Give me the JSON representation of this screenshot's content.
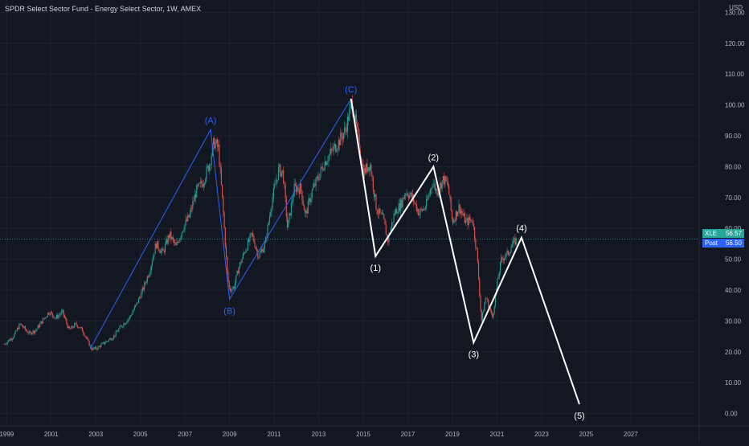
{
  "header": {
    "title": "SPDR Select Sector Fund - Energy Select Sector, 1W, AMEX",
    "currency": "USD"
  },
  "price_tags": {
    "last": {
      "label": "XLE",
      "value": "56.57"
    },
    "post": {
      "label": "Post",
      "value": "56.50"
    }
  },
  "colors": {
    "background": "#131722",
    "up": "#26a69a",
    "down": "#ef5350",
    "wave_abc": "#2962ff",
    "wave_impulse": "#ffffff",
    "grid": "#1e222d"
  },
  "chart_data": {
    "type": "line",
    "title": "SPDR Select Sector Fund - Energy Select Sector, 1W, AMEX",
    "xlabel": "",
    "ylabel": "",
    "xlim": [
      1998.7,
      2030.0
    ],
    "ylim": [
      -4,
      134
    ],
    "y_ticks": [
      0,
      10,
      20,
      30,
      40,
      50,
      60,
      70,
      80,
      90,
      100,
      110,
      120,
      130
    ],
    "y_tick_labels": [
      "0.00",
      "10.00",
      "20.00",
      "30.00",
      "40.00",
      "50.00",
      "60.00",
      "70.00",
      "80.00",
      "90.00",
      "100.00",
      "110.00",
      "120.00",
      "130.00"
    ],
    "x_ticks": [
      1999,
      2001,
      2003,
      2005,
      2007,
      2009,
      2011,
      2013,
      2015,
      2017,
      2019,
      2021,
      2023,
      2025,
      2027
    ],
    "x_tick_labels": [
      "1999",
      "2001",
      "2003",
      "2005",
      "2007",
      "2009",
      "2011",
      "2013",
      "2015",
      "2017",
      "2019",
      "2021",
      "2023",
      "2025",
      "2027"
    ],
    "grid": true,
    "current_price": 56.57,
    "price_path": [
      [
        1998.9,
        22.5
      ],
      [
        1999.3,
        25
      ],
      [
        1999.6,
        29
      ],
      [
        2000.0,
        26
      ],
      [
        2000.3,
        27
      ],
      [
        2000.6,
        30
      ],
      [
        2000.9,
        33
      ],
      [
        2001.2,
        31
      ],
      [
        2001.5,
        33
      ],
      [
        2001.8,
        27
      ],
      [
        2002.1,
        29
      ],
      [
        2002.4,
        27
      ],
      [
        2002.6,
        24
      ],
      [
        2002.8,
        21
      ],
      [
        2003.0,
        21
      ],
      [
        2003.4,
        23
      ],
      [
        2003.8,
        25
      ],
      [
        2004.1,
        28
      ],
      [
        2004.5,
        31
      ],
      [
        2004.8,
        35
      ],
      [
        2005.1,
        40
      ],
      [
        2005.4,
        46
      ],
      [
        2005.7,
        55
      ],
      [
        2006.0,
        52
      ],
      [
        2006.3,
        58
      ],
      [
        2006.6,
        54
      ],
      [
        2006.9,
        60
      ],
      [
        2007.2,
        64
      ],
      [
        2007.5,
        72
      ],
      [
        2007.8,
        75
      ],
      [
        2008.1,
        81
      ],
      [
        2008.3,
        88
      ],
      [
        2008.5,
        86
      ],
      [
        2008.7,
        67
      ],
      [
        2008.9,
        45
      ],
      [
        2009.0,
        40
      ],
      [
        2009.2,
        41
      ],
      [
        2009.4,
        47
      ],
      [
        2009.7,
        53
      ],
      [
        2010.0,
        58
      ],
      [
        2010.3,
        51
      ],
      [
        2010.6,
        55
      ],
      [
        2010.9,
        69
      ],
      [
        2011.2,
        79
      ],
      [
        2011.4,
        78
      ],
      [
        2011.6,
        60
      ],
      [
        2011.9,
        73
      ],
      [
        2012.2,
        73
      ],
      [
        2012.4,
        64
      ],
      [
        2012.7,
        72
      ],
      [
        2013.0,
        77
      ],
      [
        2013.3,
        82
      ],
      [
        2013.6,
        85
      ],
      [
        2013.9,
        88
      ],
      [
        2014.2,
        92
      ],
      [
        2014.5,
        101
      ],
      [
        2014.8,
        88
      ],
      [
        2015.0,
        78
      ],
      [
        2015.3,
        81
      ],
      [
        2015.6,
        66
      ],
      [
        2015.9,
        63
      ],
      [
        2016.1,
        56
      ],
      [
        2016.4,
        65
      ],
      [
        2016.7,
        68
      ],
      [
        2016.9,
        72
      ],
      [
        2017.2,
        70
      ],
      [
        2017.5,
        65
      ],
      [
        2017.8,
        67
      ],
      [
        2018.1,
        75
      ],
      [
        2018.3,
        72
      ],
      [
        2018.6,
        76
      ],
      [
        2018.8,
        74
      ],
      [
        2019.0,
        62
      ],
      [
        2019.3,
        67
      ],
      [
        2019.6,
        62
      ],
      [
        2019.9,
        63
      ],
      [
        2020.1,
        52
      ],
      [
        2020.3,
        30
      ],
      [
        2020.5,
        38
      ],
      [
        2020.8,
        31
      ],
      [
        2021.0,
        42
      ],
      [
        2021.2,
        50
      ],
      [
        2021.5,
        52
      ],
      [
        2021.7,
        55
      ],
      [
        2021.9,
        56.5
      ]
    ],
    "series": [
      {
        "points": [
          [
            2002.75,
            21
          ],
          [
            2008.15,
            92
          ],
          [
            2009.0,
            37
          ],
          [
            2014.45,
            102
          ]
        ]
      },
      {
        "points": [
          [
            2014.45,
            102
          ],
          [
            2015.55,
            51
          ],
          [
            2018.15,
            80
          ],
          [
            2019.95,
            23
          ],
          [
            2022.1,
            57
          ],
          [
            2024.7,
            3
          ]
        ]
      }
    ],
    "annotations": [
      {
        "text": "(A)",
        "x": 2008.15,
        "y": 92,
        "pos": "above",
        "color": "#2962ff"
      },
      {
        "text": "(B)",
        "x": 2009.0,
        "y": 37,
        "pos": "below",
        "color": "#2962ff"
      },
      {
        "text": "(C)",
        "x": 2014.45,
        "y": 102,
        "pos": "above",
        "color": "#2962ff"
      },
      {
        "text": "(1)",
        "x": 2015.55,
        "y": 51,
        "pos": "below",
        "color": "#ffffff"
      },
      {
        "text": "(2)",
        "x": 2018.15,
        "y": 80,
        "pos": "above",
        "color": "#ffffff"
      },
      {
        "text": "(3)",
        "x": 2019.95,
        "y": 23,
        "pos": "below",
        "color": "#ffffff"
      },
      {
        "text": "(4)",
        "x": 2022.1,
        "y": 57,
        "pos": "above",
        "color": "#ffffff"
      },
      {
        "text": "(5)",
        "x": 2024.7,
        "y": 3,
        "pos": "below",
        "color": "#ffffff"
      }
    ]
  }
}
